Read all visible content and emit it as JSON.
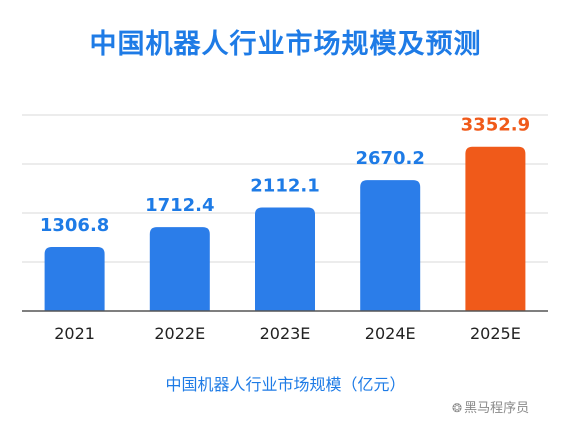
{
  "title": "中国机器人行业市场规模及预测",
  "watermark": "黑马程序员",
  "chart_data": {
    "type": "bar",
    "title": "中国机器人行业市场规模及预测",
    "xlabel": "中国机器人行业市场规模（亿元）",
    "ylabel": "",
    "categories": [
      "2021",
      "2022E",
      "2023E",
      "2024E",
      "2025E"
    ],
    "values": [
      1306.8,
      1712.4,
      2112.1,
      2670.2,
      3352.9
    ],
    "value_labels": [
      "1306.8",
      "1712.4",
      "2112.1",
      "2670.2",
      "3352.9"
    ],
    "ylim": [
      0,
      4000
    ],
    "grid": true,
    "legend": "none",
    "colors": {
      "default": "#2b7de9",
      "highlight": "#f05a1a",
      "label_default": "#1e7be6",
      "label_highlight": "#f05a1a",
      "grid": "#d8d8d8",
      "axis": "#555555",
      "tick_text": "#222222"
    },
    "highlight_index": 4
  }
}
